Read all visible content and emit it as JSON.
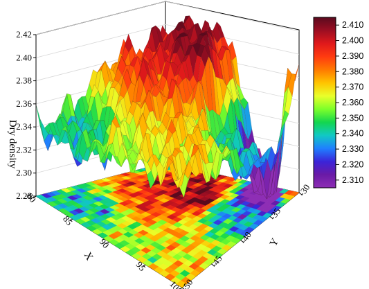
{
  "chart_data": {
    "type": "surface3d",
    "title": "",
    "xlabel": "X",
    "ylabel": "Y",
    "zlabel": "Dry density",
    "x_ticks": [
      "80",
      "85",
      "90",
      "95",
      "100"
    ],
    "y_ticks": [
      "-30",
      "-35",
      "-40",
      "-45",
      "-50"
    ],
    "z_ticks": [
      "2.28",
      "2.30",
      "2.32",
      "2.34",
      "2.36",
      "2.38",
      "2.40",
      "2.42"
    ],
    "xlim": [
      80,
      100
    ],
    "ylim": [
      -50,
      -30
    ],
    "zlim": [
      2.28,
      2.42
    ],
    "colorbar": {
      "ticks": [
        "2.410",
        "2.400",
        "2.390",
        "2.380",
        "2.370",
        "2.360",
        "2.350",
        "2.340",
        "2.330",
        "2.320",
        "2.310"
      ],
      "range": [
        2.305,
        2.415
      ],
      "colors": [
        "#5a0a1e",
        "#9c0e22",
        "#e0191b",
        "#ff3b10",
        "#ff7a00",
        "#ffc400",
        "#e9ff2a",
        "#7dff2a",
        "#13d64e",
        "#11c9c4",
        "#1f7fff",
        "#3b24d8",
        "#6a1aa6",
        "#8e2eb5"
      ]
    },
    "surface_description_points": [
      {
        "x": 80,
        "y": -30,
        "z": 2.345
      },
      {
        "x": 86,
        "y": -33,
        "z": 2.405
      },
      {
        "x": 88,
        "y": -40,
        "z": 2.39
      },
      {
        "x": 90,
        "y": -36,
        "z": 2.41
      },
      {
        "x": 93,
        "y": -44,
        "z": 2.37
      },
      {
        "x": 96,
        "y": -36,
        "z": 2.335
      },
      {
        "x": 97,
        "y": -32,
        "z": 2.285
      },
      {
        "x": 100,
        "y": -30,
        "z": 2.385
      },
      {
        "x": 100,
        "y": -50,
        "z": 2.37
      },
      {
        "x": 84,
        "y": -47,
        "z": 2.34
      },
      {
        "x": 92,
        "y": -48,
        "z": 2.36
      }
    ],
    "grid": true,
    "legend_placement": "right"
  }
}
